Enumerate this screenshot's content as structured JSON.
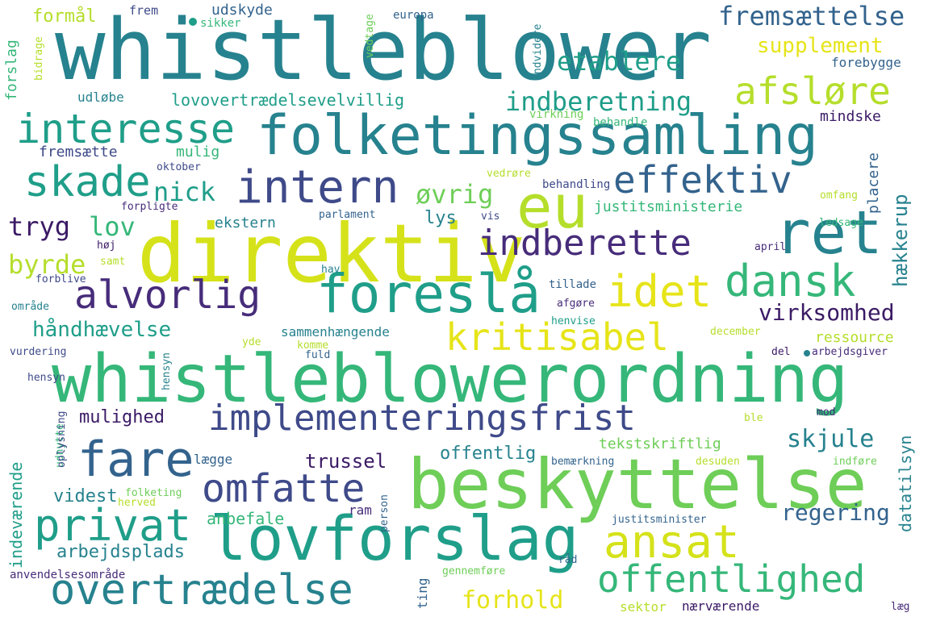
{
  "palette": {
    "purple": "#472c7a",
    "dark_purple": "#3b1a65",
    "indigo": "#3e4a89",
    "blue": "#33638d",
    "teal": "#26828e",
    "sea": "#1f9e89",
    "green": "#35b779",
    "lime": "#6ece58",
    "yellowgreen": "#b5de2b",
    "yellow": "#e6e419",
    "pale": "#d5e21a"
  },
  "words": {
    "whistleblower": "whistleblower",
    "whistleblowerordning": "whistleblowerordning",
    "direktiv": "direktiv",
    "beskyttelse": "beskyttelse",
    "folketingssamling": "folketingssamling",
    "lovforslag": "lovforslag",
    "eu": "eu",
    "ret": "ret",
    "foreslaa": "foreslå",
    "implementeringsfrist": "implementeringsfrist",
    "overtraedelse": "overtrædelse",
    "offentlighed": "offentlighed",
    "intern": "intern",
    "interesse": "interesse",
    "skade": "skade",
    "fare": "fare",
    "privat": "privat",
    "omfatte": "omfatte",
    "ansat": "ansat",
    "dansk": "dansk",
    "idet": "idet",
    "alvorlig": "alvorlig",
    "indberette": "indberette",
    "kritisabel": "kritisabel",
    "effektiv": "effektiv",
    "afsloere": "afsløre",
    "indberetning": "indberetning",
    "etablere": "etablere",
    "fremsaettelse": "fremsættelse",
    "supplement": "supplement",
    "lovovertraedelsevelvillig": "lovovertrædelsevelvillig",
    "nick": "nick",
    "oevrig": "øvrig",
    "tryg": "tryg",
    "lov": "lov",
    "byrde": "byrde",
    "haandhaevelse": "håndhævelse",
    "virksomhed": "virksomhed",
    "regering": "regering",
    "skjule": "skjule",
    "forhold": "forhold",
    "mulighed": "mulighed",
    "trussel": "trussel",
    "offentlig": "offentlig",
    "videst": "videst",
    "arbejdsplads": "arbejdsplads",
    "anbefale": "anbefale",
    "formaal": "formål",
    "frem": "frem",
    "udskyde": "udskyde",
    "sikker": "sikker",
    "europa": "europa",
    "forslag": "forslag",
    "bidrage": "bidrage",
    "vedtage": "vedtage",
    "endvidere": "endvidere",
    "forebygge": "forebygge",
    "udloebe": "udløbe",
    "virkning": "virkning",
    "behandle": "behandle",
    "mindske": "mindske",
    "fremsaette": "fremsætte",
    "mulig": "mulig",
    "oktober": "oktober",
    "placere": "placere",
    "haekkerup": "hækkerup",
    "vedroere": "vedrøre",
    "behandling": "behandling",
    "forpligte": "forpligte",
    "omfang": "omfang",
    "ekstern": "ekstern",
    "justitsministerie": "justitsministerie",
    "parlament": "parlament",
    "vis": "vis",
    "ledsage": "ledsage",
    "hoej": "høj",
    "samt": "samt",
    "lys": "lys",
    "april": "april",
    "forblive": "forblive",
    "hav": "hav",
    "tillade": "tillade",
    "omraade": "område",
    "afgoere": "afgøre",
    "henvise": "henvise",
    "sammenhaengende": "sammenhængende",
    "ressource": "ressource",
    "december": "december",
    "vurdering": "vurdering",
    "yde": "yde",
    "komme": "komme",
    "fuld": "fuld",
    "del": "del",
    "arbejdsgiver": "arbejdsgiver",
    "hensyn": "hensyn",
    "indevaerende": "indeværende",
    "udnytte": "udnytte",
    "oplysning": "oplysning",
    "laegge": "lægge",
    "tekstskriftlig": "tekstskriftlig",
    "datatilsyn": "datatilsyn",
    "mod": "mod",
    "ble": "ble",
    "desuden": "desuden",
    "indfoere": "indføre",
    "bemaerkning": "bemærkning",
    "folketing": "folketing",
    "herved": "herved",
    "ram": "ram",
    "person": "person",
    "justitsminister": "justitsminister",
    "anvendelsesomraade": "anvendelsesområde",
    "raad": "råd",
    "gennemfoere": "gennemføre",
    "ting": "ting",
    "sektor": "sektor",
    "naervaerende": "nærværende",
    "laeg": "læg"
  }
}
